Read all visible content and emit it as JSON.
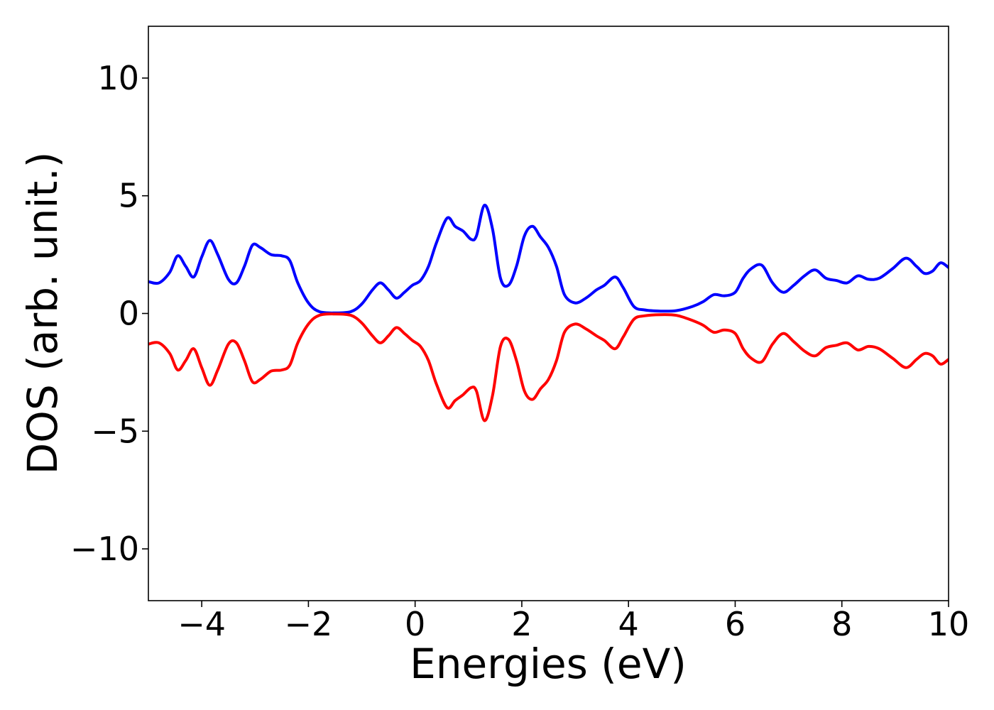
{
  "chart_data": {
    "type": "line",
    "title": "",
    "xlabel": "Energies (eV)",
    "ylabel": "DOS (arb. unit.)",
    "xlim": [
      -5,
      10
    ],
    "ylim": [
      -12.2,
      12.2
    ],
    "xticks": [
      -4,
      -2,
      0,
      2,
      4,
      6,
      8,
      10
    ],
    "yticks": [
      -10,
      -5,
      0,
      5,
      10
    ],
    "xtick_labels": [
      "−4",
      "−2",
      "0",
      "2",
      "4",
      "6",
      "8",
      "10"
    ],
    "ytick_labels": [
      "−10",
      "−5",
      "0",
      "5",
      "10"
    ],
    "grid": false,
    "legend": "none",
    "series": [
      {
        "color": "#0000ff",
        "points": [
          [
            -5.0,
            1.35
          ],
          [
            -4.8,
            1.3
          ],
          [
            -4.6,
            1.75
          ],
          [
            -4.45,
            2.45
          ],
          [
            -4.3,
            2.0
          ],
          [
            -4.15,
            1.55
          ],
          [
            -4.0,
            2.4
          ],
          [
            -3.85,
            3.1
          ],
          [
            -3.7,
            2.5
          ],
          [
            -3.5,
            1.45
          ],
          [
            -3.35,
            1.3
          ],
          [
            -3.2,
            2.0
          ],
          [
            -3.05,
            2.9
          ],
          [
            -2.9,
            2.8
          ],
          [
            -2.7,
            2.5
          ],
          [
            -2.5,
            2.45
          ],
          [
            -2.35,
            2.25
          ],
          [
            -2.2,
            1.3
          ],
          [
            -2.0,
            0.45
          ],
          [
            -1.8,
            0.08
          ],
          [
            -1.5,
            0.02
          ],
          [
            -1.2,
            0.08
          ],
          [
            -1.0,
            0.4
          ],
          [
            -0.8,
            1.0
          ],
          [
            -0.65,
            1.3
          ],
          [
            -0.5,
            1.0
          ],
          [
            -0.35,
            0.65
          ],
          [
            -0.2,
            0.9
          ],
          [
            -0.05,
            1.2
          ],
          [
            0.1,
            1.4
          ],
          [
            0.25,
            2.0
          ],
          [
            0.4,
            3.0
          ],
          [
            0.6,
            4.05
          ],
          [
            0.75,
            3.7
          ],
          [
            0.9,
            3.5
          ],
          [
            1.05,
            3.15
          ],
          [
            1.15,
            3.3
          ],
          [
            1.3,
            4.6
          ],
          [
            1.45,
            3.6
          ],
          [
            1.6,
            1.5
          ],
          [
            1.75,
            1.2
          ],
          [
            1.9,
            2.0
          ],
          [
            2.05,
            3.3
          ],
          [
            2.2,
            3.7
          ],
          [
            2.35,
            3.25
          ],
          [
            2.5,
            2.8
          ],
          [
            2.65,
            2.0
          ],
          [
            2.8,
            0.8
          ],
          [
            3.0,
            0.45
          ],
          [
            3.2,
            0.65
          ],
          [
            3.4,
            1.0
          ],
          [
            3.55,
            1.2
          ],
          [
            3.75,
            1.55
          ],
          [
            3.9,
            1.1
          ],
          [
            4.1,
            0.3
          ],
          [
            4.3,
            0.15
          ],
          [
            4.6,
            0.1
          ],
          [
            4.9,
            0.12
          ],
          [
            5.2,
            0.3
          ],
          [
            5.4,
            0.5
          ],
          [
            5.6,
            0.8
          ],
          [
            5.8,
            0.75
          ],
          [
            6.0,
            0.9
          ],
          [
            6.15,
            1.5
          ],
          [
            6.3,
            1.9
          ],
          [
            6.5,
            2.05
          ],
          [
            6.7,
            1.3
          ],
          [
            6.9,
            0.9
          ],
          [
            7.1,
            1.2
          ],
          [
            7.3,
            1.6
          ],
          [
            7.5,
            1.85
          ],
          [
            7.7,
            1.5
          ],
          [
            7.9,
            1.4
          ],
          [
            8.1,
            1.3
          ],
          [
            8.3,
            1.6
          ],
          [
            8.5,
            1.45
          ],
          [
            8.7,
            1.5
          ],
          [
            8.95,
            1.9
          ],
          [
            9.2,
            2.35
          ],
          [
            9.4,
            2.0
          ],
          [
            9.55,
            1.7
          ],
          [
            9.7,
            1.8
          ],
          [
            9.85,
            2.15
          ],
          [
            10.0,
            1.95
          ]
        ]
      },
      {
        "color": "#ff0000",
        "points": [
          [
            -5.0,
            -1.3
          ],
          [
            -4.8,
            -1.25
          ],
          [
            -4.6,
            -1.7
          ],
          [
            -4.45,
            -2.4
          ],
          [
            -4.3,
            -2.0
          ],
          [
            -4.15,
            -1.5
          ],
          [
            -4.0,
            -2.3
          ],
          [
            -3.85,
            -3.05
          ],
          [
            -3.7,
            -2.4
          ],
          [
            -3.5,
            -1.3
          ],
          [
            -3.35,
            -1.25
          ],
          [
            -3.2,
            -2.0
          ],
          [
            -3.05,
            -2.9
          ],
          [
            -2.9,
            -2.8
          ],
          [
            -2.7,
            -2.45
          ],
          [
            -2.5,
            -2.4
          ],
          [
            -2.35,
            -2.2
          ],
          [
            -2.2,
            -1.25
          ],
          [
            -2.0,
            -0.45
          ],
          [
            -1.8,
            -0.08
          ],
          [
            -1.5,
            -0.02
          ],
          [
            -1.2,
            -0.08
          ],
          [
            -1.0,
            -0.4
          ],
          [
            -0.8,
            -0.95
          ],
          [
            -0.65,
            -1.25
          ],
          [
            -0.5,
            -0.95
          ],
          [
            -0.35,
            -0.6
          ],
          [
            -0.2,
            -0.85
          ],
          [
            -0.05,
            -1.15
          ],
          [
            0.1,
            -1.4
          ],
          [
            0.25,
            -2.0
          ],
          [
            0.4,
            -3.0
          ],
          [
            0.6,
            -4.0
          ],
          [
            0.75,
            -3.7
          ],
          [
            0.9,
            -3.45
          ],
          [
            1.05,
            -3.15
          ],
          [
            1.15,
            -3.3
          ],
          [
            1.3,
            -4.55
          ],
          [
            1.45,
            -3.5
          ],
          [
            1.6,
            -1.4
          ],
          [
            1.75,
            -1.1
          ],
          [
            1.9,
            -2.0
          ],
          [
            2.05,
            -3.3
          ],
          [
            2.2,
            -3.65
          ],
          [
            2.35,
            -3.2
          ],
          [
            2.5,
            -2.8
          ],
          [
            2.65,
            -2.0
          ],
          [
            2.8,
            -0.8
          ],
          [
            3.0,
            -0.45
          ],
          [
            3.2,
            -0.65
          ],
          [
            3.4,
            -0.95
          ],
          [
            3.55,
            -1.15
          ],
          [
            3.75,
            -1.5
          ],
          [
            3.9,
            -1.0
          ],
          [
            4.1,
            -0.25
          ],
          [
            4.3,
            -0.1
          ],
          [
            4.6,
            -0.05
          ],
          [
            4.9,
            -0.08
          ],
          [
            5.2,
            -0.3
          ],
          [
            5.4,
            -0.5
          ],
          [
            5.6,
            -0.8
          ],
          [
            5.8,
            -0.7
          ],
          [
            6.0,
            -0.85
          ],
          [
            6.15,
            -1.5
          ],
          [
            6.3,
            -1.9
          ],
          [
            6.5,
            -2.05
          ],
          [
            6.7,
            -1.3
          ],
          [
            6.9,
            -0.85
          ],
          [
            7.1,
            -1.2
          ],
          [
            7.3,
            -1.6
          ],
          [
            7.5,
            -1.8
          ],
          [
            7.7,
            -1.45
          ],
          [
            7.9,
            -1.35
          ],
          [
            8.1,
            -1.25
          ],
          [
            8.3,
            -1.55
          ],
          [
            8.5,
            -1.4
          ],
          [
            8.7,
            -1.5
          ],
          [
            8.95,
            -1.9
          ],
          [
            9.2,
            -2.3
          ],
          [
            9.4,
            -1.95
          ],
          [
            9.55,
            -1.7
          ],
          [
            9.7,
            -1.8
          ],
          [
            9.85,
            -2.15
          ],
          [
            10.0,
            -1.95
          ]
        ]
      }
    ]
  }
}
